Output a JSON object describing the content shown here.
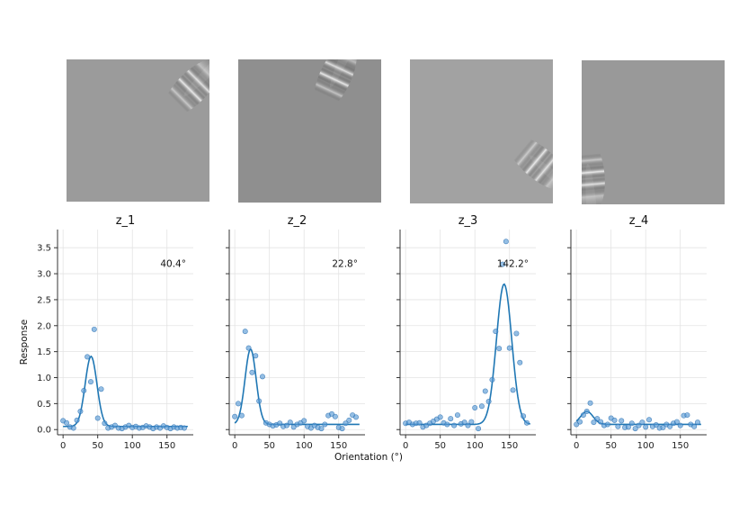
{
  "chart_data": [
    {
      "type": "scatter",
      "title": "z_1",
      "annotation": "40.4°",
      "gabor": {
        "cx": 0.88,
        "cy": 0.2,
        "angle": -45
      },
      "xlim": [
        -8,
        188
      ],
      "ylim": [
        -0.1,
        3.85
      ],
      "points": {
        "x": [
          0,
          5,
          10,
          15,
          20,
          25,
          30,
          35,
          40,
          45,
          50,
          55,
          60,
          65,
          70,
          75,
          80,
          85,
          90,
          95,
          100,
          105,
          110,
          115,
          120,
          125,
          130,
          135,
          140,
          145,
          150,
          155,
          160,
          165,
          170,
          175
        ],
        "y": [
          0.17,
          0.13,
          0.05,
          0.03,
          0.18,
          0.35,
          0.75,
          1.4,
          0.92,
          1.93,
          0.22,
          0.78,
          0.12,
          0.03,
          0.05,
          0.08,
          0.03,
          0.02,
          0.05,
          0.08,
          0.04,
          0.06,
          0.03,
          0.04,
          0.07,
          0.05,
          0.02,
          0.05,
          0.03,
          0.07,
          0.04,
          0.02,
          0.05,
          0.03,
          0.04,
          0.03
        ]
      },
      "fit": {
        "amplitude": 1.35,
        "center": 40.4,
        "width": 8.5,
        "baseline": 0.06
      }
    },
    {
      "type": "scatter",
      "title": "z_2",
      "annotation": "22.8°",
      "gabor": {
        "cx": 0.68,
        "cy": 0.12,
        "angle": -65
      },
      "xlim": [
        -8,
        188
      ],
      "ylim": [
        -0.1,
        3.85
      ],
      "points": {
        "x": [
          0,
          5,
          10,
          15,
          20,
          25,
          30,
          35,
          40,
          45,
          50,
          55,
          60,
          65,
          70,
          75,
          80,
          85,
          90,
          95,
          100,
          105,
          110,
          115,
          120,
          125,
          130,
          135,
          140,
          145,
          150,
          155,
          160,
          165,
          170,
          175
        ],
        "y": [
          0.25,
          0.5,
          0.27,
          1.89,
          1.57,
          1.1,
          1.42,
          0.55,
          1.02,
          0.13,
          0.1,
          0.07,
          0.09,
          0.12,
          0.06,
          0.08,
          0.14,
          0.05,
          0.1,
          0.13,
          0.17,
          0.06,
          0.03,
          0.08,
          0.04,
          0.02,
          0.1,
          0.27,
          0.3,
          0.25,
          0.04,
          0.02,
          0.12,
          0.18,
          0.28,
          0.24
        ]
      },
      "fit": {
        "amplitude": 1.45,
        "center": 22.8,
        "width": 8.0,
        "baseline": 0.1
      }
    },
    {
      "type": "scatter",
      "title": "z_3",
      "annotation": "142.2°",
      "gabor": {
        "cx": 0.9,
        "cy": 0.72,
        "angle": 40
      },
      "xlim": [
        -8,
        188
      ],
      "ylim": [
        -0.1,
        3.85
      ],
      "points": {
        "x": [
          0,
          5,
          10,
          15,
          20,
          25,
          30,
          35,
          40,
          45,
          50,
          55,
          60,
          65,
          70,
          75,
          80,
          85,
          90,
          95,
          100,
          105,
          110,
          115,
          120,
          125,
          130,
          135,
          140,
          145,
          150,
          155,
          160,
          165,
          170,
          175
        ],
        "y": [
          0.12,
          0.14,
          0.1,
          0.12,
          0.13,
          0.05,
          0.08,
          0.12,
          0.16,
          0.2,
          0.24,
          0.13,
          0.1,
          0.21,
          0.08,
          0.28,
          0.11,
          0.14,
          0.08,
          0.15,
          0.42,
          0.02,
          0.45,
          0.74,
          0.54,
          0.96,
          1.89,
          1.56,
          3.18,
          3.62,
          1.57,
          0.76,
          1.85,
          1.29,
          0.26,
          0.13
        ]
      },
      "fit": {
        "amplitude": 2.7,
        "center": 142.2,
        "width": 11.0,
        "baseline": 0.1
      }
    },
    {
      "type": "scatter",
      "title": "z_4",
      "annotation": "",
      "gabor": {
        "cx": 0.05,
        "cy": 0.8,
        "angle": 85
      },
      "xlim": [
        -8,
        188
      ],
      "ylim": [
        -0.1,
        3.85
      ],
      "points": {
        "x": [
          0,
          5,
          10,
          15,
          20,
          25,
          30,
          35,
          40,
          45,
          50,
          55,
          60,
          65,
          70,
          75,
          80,
          85,
          90,
          95,
          100,
          105,
          110,
          115,
          120,
          125,
          130,
          135,
          140,
          145,
          150,
          155,
          160,
          165,
          170,
          175
        ],
        "y": [
          0.1,
          0.15,
          0.28,
          0.35,
          0.51,
          0.14,
          0.21,
          0.15,
          0.08,
          0.1,
          0.22,
          0.18,
          0.06,
          0.17,
          0.04,
          0.05,
          0.12,
          0.02,
          0.08,
          0.14,
          0.05,
          0.19,
          0.06,
          0.09,
          0.03,
          0.04,
          0.1,
          0.06,
          0.12,
          0.15,
          0.08,
          0.27,
          0.28,
          0.1,
          0.06,
          0.14
        ]
      },
      "fit": {
        "amplitude": 0.25,
        "center": 15,
        "width": 9.0,
        "baseline": 0.1
      }
    }
  ],
  "shared": {
    "ylabel": "Response",
    "xlabel": "Orientation (°)",
    "xticks": [
      0,
      50,
      100,
      150
    ],
    "yticks": [
      0.0,
      0.5,
      1.0,
      1.5,
      2.0,
      2.5,
      3.0,
      3.5
    ]
  }
}
